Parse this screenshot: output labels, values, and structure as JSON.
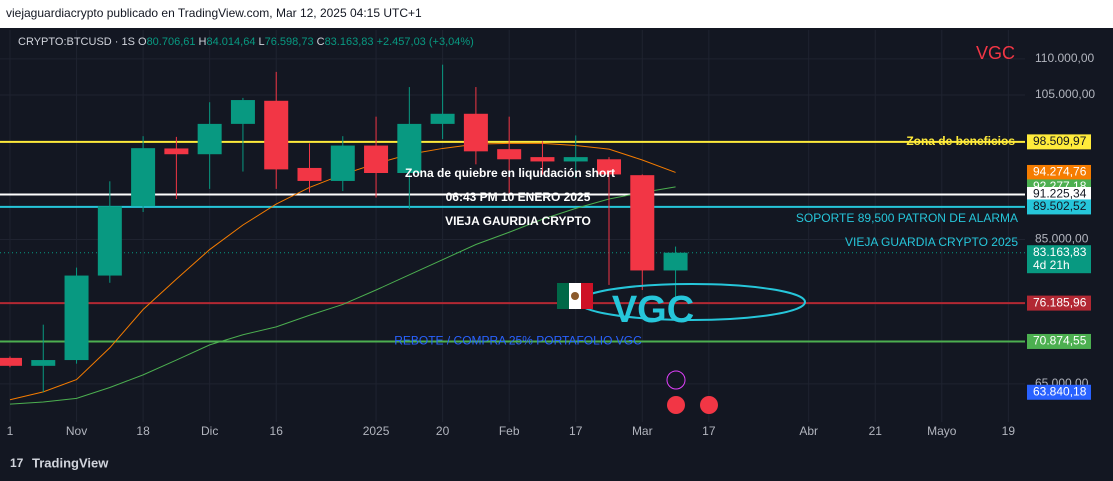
{
  "chart_data": {
    "type": "candlestick",
    "header": "viejaguardiacrypto publicado en TradingView.com, Mar 12, 2025 04:15 UTC+1",
    "symbol": "CRYPTO:BTCUSD · 1S",
    "ohlc_legend": {
      "O": "80.706,61",
      "H": "84.014,64",
      "L": "76.598,73",
      "C": "83.163,83",
      "change": "+2.457,03 (+3,04%)"
    },
    "watermark": "VGC",
    "footer": "TradingView",
    "xlim": [
      -0.3,
      30.5
    ],
    "xticks": [
      {
        "value": 0,
        "label": "1"
      },
      {
        "value": 2,
        "label": "Nov"
      },
      {
        "value": 4,
        "label": "18"
      },
      {
        "value": 6,
        "label": "Dic"
      },
      {
        "value": 8,
        "label": "16"
      },
      {
        "value": 11,
        "label": "2025"
      },
      {
        "value": 13,
        "label": "20"
      },
      {
        "value": 15,
        "label": "Feb"
      },
      {
        "value": 17,
        "label": "17"
      },
      {
        "value": 19,
        "label": "Mar"
      },
      {
        "value": 21,
        "label": "17"
      },
      {
        "value": 24,
        "label": "Abr"
      },
      {
        "value": 26,
        "label": "21"
      },
      {
        "value": 28,
        "label": "Mayo"
      },
      {
        "value": 30,
        "label": "19"
      }
    ],
    "ylim": [
      60000,
      114000
    ],
    "yticks": [
      {
        "value": 65000,
        "label": "65.000,00"
      },
      {
        "value": 85000,
        "label": "85.000,00"
      },
      {
        "value": 105000,
        "label": "105.000,00"
      },
      {
        "value": 110000,
        "label": "110.000,00"
      }
    ],
    "grid": true,
    "up_color": "#089981",
    "down_color": "#f23645",
    "x": [
      0,
      1,
      2,
      3,
      4,
      5,
      6,
      7,
      8,
      9,
      10,
      11,
      12,
      13,
      14,
      15,
      16,
      17,
      18,
      19,
      20
    ],
    "open": [
      68600,
      67500,
      68300,
      80000,
      89600,
      97600,
      96800,
      101000,
      104200,
      94900,
      93100,
      98000,
      94200,
      101000,
      102400,
      97500,
      96400,
      95800,
      96100,
      93900,
      80706.61
    ],
    "high": [
      68800,
      73200,
      81100,
      93050,
      99300,
      99200,
      104000,
      104600,
      108200,
      98300,
      99300,
      102000,
      106100,
      109200,
      106100,
      102000,
      98600,
      99400,
      96400,
      94000,
      84014.64
    ],
    "low": [
      67300,
      63840.18,
      67800,
      79000,
      88800,
      90600,
      92000,
      94400,
      92000,
      91500,
      91700,
      90800,
      89200,
      98900,
      95400,
      91250,
      94000,
      93500,
      78700,
      78000,
      76598.73
    ],
    "close": [
      67500,
      68300,
      80000,
      89600,
      97640,
      96800,
      101000,
      104300,
      94700,
      93100,
      98000,
      94200,
      101000,
      102400,
      97200,
      96100,
      95800,
      96400,
      94000,
      80706.61,
      83163.83
    ],
    "series": [
      {
        "name": "MA naranja",
        "color": "#f57c00",
        "values": [
          62800,
          63900,
          65600,
          70000,
          75300,
          79500,
          83600,
          87000,
          89900,
          92200,
          94000,
          95500,
          96800,
          97600,
          98200,
          98300,
          98300,
          98000,
          97500,
          96000,
          94274.76
        ]
      },
      {
        "name": "MA verde",
        "color": "#4caf50",
        "values": [
          62200,
          62500,
          63000,
          64500,
          66250,
          68300,
          70400,
          71800,
          72900,
          74500,
          76000,
          78000,
          80100,
          82200,
          84300,
          86000,
          87800,
          89300,
          90600,
          91500,
          92277.18
        ]
      }
    ],
    "levels": [
      {
        "value": 98509.97,
        "color": "#ffeb3b",
        "text": "Zona de beneficios"
      },
      {
        "value": 91225.34,
        "color": "#ffffff"
      },
      {
        "value": 89502.52,
        "color": "#26c6da",
        "text": "SOPORTE 89,500 PATRON DE ALARMA"
      },
      {
        "value": 76185.96,
        "color": "#b22833"
      },
      {
        "value": 70874.55,
        "color": "#4caf50",
        "text": "REBOTE / COMPRA 25% PORTAFOLIO VGC"
      }
    ],
    "price_labels": [
      {
        "value": 98509.97,
        "label": "98.509,97",
        "bg": "#ffeb3b",
        "fg": "#131722"
      },
      {
        "value": 94274.76,
        "label": "94.274,76",
        "bg": "#f57c00",
        "fg": "#ffffff"
      },
      {
        "value": 92277.18,
        "label": "92.277,18",
        "bg": "#4caf50",
        "fg": "#ffffff"
      },
      {
        "value": 91225.34,
        "label": "91.225,34",
        "bg": "#ffffff",
        "fg": "#131722"
      },
      {
        "value": 89502.52,
        "label": "89.502,52",
        "bg": "#26c6da",
        "fg": "#131722"
      },
      {
        "value": 83163.83,
        "label": "83.163,83",
        "bg": "#089981",
        "fg": "#ffffff",
        "sub": "4d 21h"
      },
      {
        "value": 76185.96,
        "label": "76.185,96",
        "bg": "#b22833",
        "fg": "#ffffff"
      },
      {
        "value": 70874.55,
        "label": "70.874,55",
        "bg": "#4caf50",
        "fg": "#ffffff"
      },
      {
        "value": 63840.18,
        "label": "63.840,18",
        "bg": "#2962ff",
        "fg": "#ffffff"
      }
    ],
    "annotations": [
      "Zona de quiebre en liquidación short",
      "06:43 PM 10 ENERO 2025",
      "VIEJA GAURDIA CRYPTO",
      "VIEJA GUARDIA CRYPTO 2025",
      "VGC"
    ]
  }
}
